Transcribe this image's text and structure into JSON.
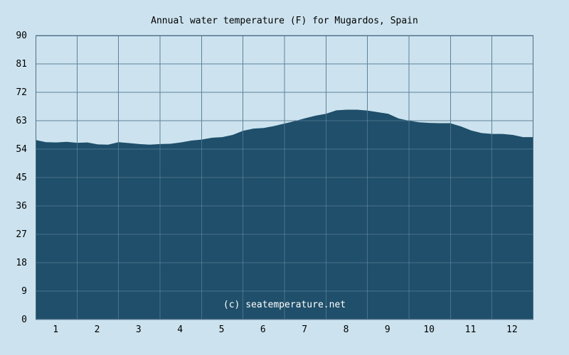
{
  "chart_data": {
    "type": "area",
    "title": "Annual water temperature (F) for Mugardos, Spain",
    "xlabel": "",
    "ylabel": "",
    "x_tick_labels": [
      "1",
      "2",
      "3",
      "4",
      "5",
      "6",
      "7",
      "8",
      "9",
      "10",
      "11",
      "12"
    ],
    "y_tick_labels": [
      "0",
      "9",
      "18",
      "27",
      "36",
      "45",
      "54",
      "63",
      "72",
      "81",
      "90"
    ],
    "ylim": [
      0,
      90
    ],
    "xlim": [
      0.5,
      12.5
    ],
    "grid": true,
    "legend": "none",
    "watermark": "(c) seatemperature.net",
    "series": [
      {
        "x": [
          0.5,
          0.75,
          1.0,
          1.25,
          1.5,
          1.75,
          2.0,
          2.25,
          2.5,
          2.75,
          3.0,
          3.25,
          3.5,
          3.75,
          4.0,
          4.25,
          4.5,
          4.75,
          5.0,
          5.25,
          5.5,
          5.75,
          6.0,
          6.25,
          6.5,
          6.75,
          7.0,
          7.25,
          7.5,
          7.75,
          8.0,
          8.25,
          8.5,
          8.75,
          9.0,
          9.25,
          9.5,
          9.75,
          10.0,
          10.25,
          10.5,
          10.75,
          11.0,
          11.25,
          11.5,
          11.75,
          12.0,
          12.25,
          12.5
        ],
        "values": [
          56.9,
          56.2,
          56.1,
          56.3,
          56.0,
          56.1,
          55.5,
          55.4,
          56.2,
          55.9,
          55.6,
          55.4,
          55.6,
          55.7,
          56.1,
          56.7,
          57.0,
          57.6,
          57.8,
          58.5,
          59.8,
          60.5,
          60.7,
          61.3,
          62.1,
          62.9,
          63.8,
          64.6,
          65.2,
          66.3,
          66.5,
          66.5,
          66.2,
          65.7,
          65.2,
          63.7,
          63.0,
          62.5,
          62.3,
          62.2,
          62.2,
          61.2,
          59.9,
          59.1,
          58.8,
          58.8,
          58.5,
          57.8,
          57.8
        ]
      }
    ],
    "colors": {
      "background": "#cce3ef",
      "area_fill": "#1f4f6a",
      "grid": "#4d6d87",
      "axis": "#4d6d87",
      "text": "#000000",
      "watermark": "#ffffff"
    }
  }
}
